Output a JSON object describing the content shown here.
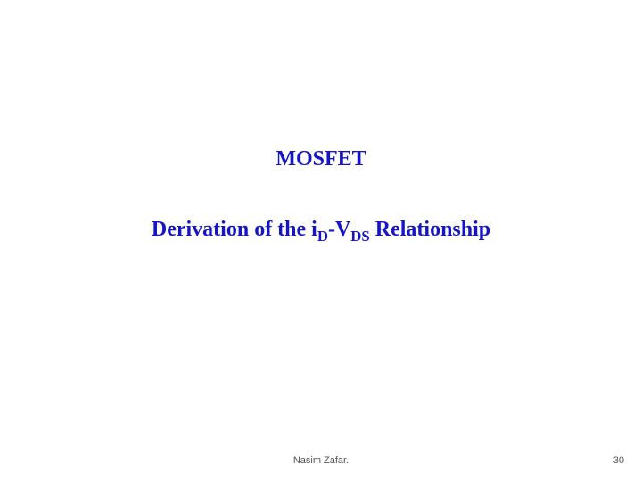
{
  "title": {
    "text": "MOSFET",
    "color": "#1515c7",
    "fontsize": 24
  },
  "subtitle": {
    "prefix": "Derivation of the i",
    "sub1": "D",
    "mid": "-V",
    "sub2": "DS",
    "suffix": " Relationship",
    "color": "#1515c7",
    "fontsize": 24
  },
  "footer": {
    "author": "Nasim Zafar.",
    "author_color": "#555555",
    "author_fontsize": 11,
    "page_number": "30",
    "page_number_color": "#555555",
    "page_number_fontsize": 11
  },
  "background_color": "#ffffff"
}
